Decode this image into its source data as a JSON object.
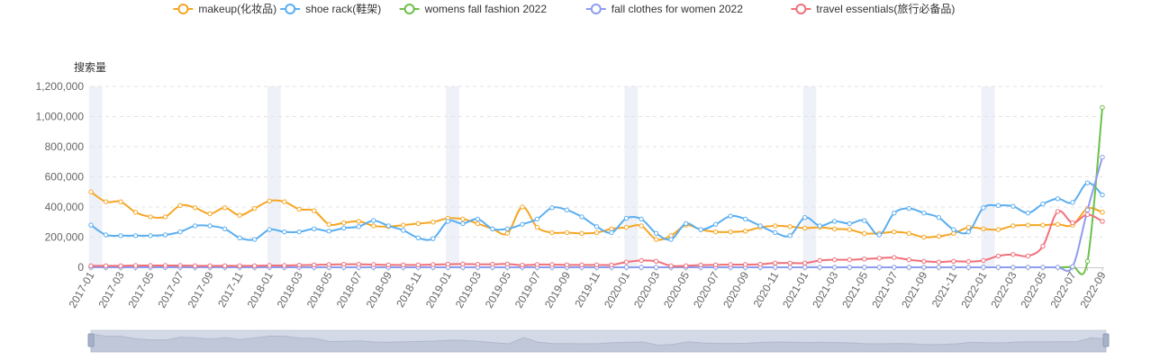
{
  "chart_data": {
    "type": "line",
    "ylabel": "搜索量",
    "ylim": [
      0,
      1200000
    ],
    "y_ticks": [
      "0",
      "200,000",
      "400,000",
      "600,000",
      "800,000",
      "1,000,000",
      "1,200,000"
    ],
    "legend_position": "top-center",
    "grid": true,
    "x_tick_labels": [
      "2017-01",
      "2017-03",
      "2017-05",
      "2017-07",
      "2017-09",
      "2017-11",
      "2018-01",
      "2018-03",
      "2018-05",
      "2018-07",
      "2018-09",
      "2018-11",
      "2019-01",
      "2019-03",
      "2019-05",
      "2019-07",
      "2019-09",
      "2019-11",
      "2020-01",
      "2020-03",
      "2020-05",
      "2020-07",
      "2020-09",
      "2020-11",
      "2021-01",
      "2021-03",
      "2021-05",
      "2021-07",
      "2021-09",
      "2021-11",
      "2022-01",
      "2022-03",
      "2022-05",
      "2022-07",
      "2022-09"
    ],
    "x": [
      "2017-01",
      "2017-02",
      "2017-03",
      "2017-04",
      "2017-05",
      "2017-06",
      "2017-07",
      "2017-08",
      "2017-09",
      "2017-10",
      "2017-11",
      "2017-12",
      "2018-01",
      "2018-02",
      "2018-03",
      "2018-04",
      "2018-05",
      "2018-06",
      "2018-07",
      "2018-08",
      "2018-09",
      "2018-10",
      "2018-11",
      "2018-12",
      "2019-01",
      "2019-02",
      "2019-03",
      "2019-04",
      "2019-05",
      "2019-06",
      "2019-07",
      "2019-08",
      "2019-09",
      "2019-10",
      "2019-11",
      "2019-12",
      "2020-01",
      "2020-02",
      "2020-03",
      "2020-04",
      "2020-05",
      "2020-06",
      "2020-07",
      "2020-08",
      "2020-09",
      "2020-10",
      "2020-11",
      "2020-12",
      "2021-01",
      "2021-02",
      "2021-03",
      "2021-04",
      "2021-05",
      "2021-06",
      "2021-07",
      "2021-08",
      "2021-09",
      "2021-10",
      "2021-11",
      "2021-12",
      "2022-01",
      "2022-02",
      "2022-03",
      "2022-04",
      "2022-05",
      "2022-06",
      "2022-07",
      "2022-08",
      "2022-09"
    ],
    "series": [
      {
        "name": "makeup(化妆品)",
        "color": "#f5a623",
        "values": [
          500000,
          435000,
          435000,
          365000,
          335000,
          335000,
          410000,
          395000,
          355000,
          395000,
          345000,
          390000,
          440000,
          435000,
          385000,
          375000,
          285000,
          295000,
          305000,
          275000,
          270000,
          280000,
          290000,
          300000,
          325000,
          320000,
          290000,
          255000,
          225000,
          400000,
          265000,
          230000,
          230000,
          225000,
          230000,
          255000,
          265000,
          275000,
          185000,
          210000,
          280000,
          250000,
          235000,
          235000,
          240000,
          265000,
          275000,
          270000,
          260000,
          265000,
          255000,
          250000,
          225000,
          225000,
          235000,
          225000,
          200000,
          205000,
          225000,
          265000,
          255000,
          250000,
          275000,
          280000,
          280000,
          285000,
          280000,
          390000,
          365000
        ]
      },
      {
        "name": "shoe rack(鞋架)",
        "color": "#5aaef0",
        "values": [
          280000,
          215000,
          210000,
          210000,
          210000,
          215000,
          235000,
          275000,
          275000,
          255000,
          195000,
          185000,
          250000,
          235000,
          235000,
          255000,
          240000,
          260000,
          270000,
          310000,
          275000,
          245000,
          195000,
          190000,
          305000,
          290000,
          320000,
          255000,
          255000,
          285000,
          320000,
          395000,
          380000,
          335000,
          270000,
          230000,
          325000,
          320000,
          225000,
          185000,
          290000,
          250000,
          285000,
          340000,
          320000,
          275000,
          230000,
          210000,
          330000,
          275000,
          305000,
          290000,
          310000,
          215000,
          360000,
          390000,
          360000,
          330000,
          250000,
          235000,
          395000,
          410000,
          405000,
          360000,
          420000,
          455000,
          430000,
          560000,
          480000
        ]
      },
      {
        "name": "womens fall fashion 2022",
        "color": "#6cc04a",
        "values": [
          0,
          0,
          0,
          0,
          0,
          0,
          0,
          0,
          0,
          0,
          0,
          0,
          0,
          0,
          0,
          0,
          0,
          0,
          0,
          0,
          0,
          0,
          0,
          0,
          0,
          0,
          0,
          0,
          0,
          0,
          0,
          0,
          0,
          0,
          0,
          0,
          0,
          0,
          0,
          0,
          0,
          0,
          0,
          0,
          0,
          0,
          0,
          0,
          0,
          0,
          0,
          0,
          0,
          0,
          0,
          0,
          0,
          0,
          0,
          0,
          0,
          0,
          0,
          0,
          0,
          0,
          5000,
          40000,
          1060000
        ]
      },
      {
        "name": "fall clothes for women 2022",
        "color": "#8e9cf0",
        "values": [
          0,
          0,
          0,
          0,
          0,
          0,
          0,
          0,
          0,
          0,
          0,
          0,
          0,
          0,
          0,
          0,
          0,
          0,
          0,
          0,
          0,
          0,
          0,
          0,
          0,
          0,
          0,
          0,
          0,
          0,
          0,
          0,
          0,
          0,
          0,
          0,
          0,
          0,
          0,
          0,
          0,
          0,
          0,
          0,
          0,
          0,
          0,
          0,
          0,
          0,
          0,
          0,
          0,
          0,
          0,
          0,
          0,
          0,
          0,
          0,
          0,
          0,
          0,
          0,
          0,
          0,
          5000,
          380000,
          730000
        ]
      },
      {
        "name": "travel essentials(旅行必备品)",
        "color": "#f0707a",
        "values": [
          10000,
          10000,
          10000,
          12000,
          12000,
          12000,
          12000,
          10000,
          10000,
          10000,
          10000,
          10000,
          12000,
          12000,
          14000,
          16000,
          18000,
          20000,
          20000,
          18000,
          16000,
          16000,
          16000,
          18000,
          20000,
          22000,
          20000,
          20000,
          22000,
          14000,
          18000,
          18000,
          16000,
          16000,
          16000,
          16000,
          35000,
          45000,
          40000,
          10000,
          10000,
          15000,
          16000,
          18000,
          18000,
          20000,
          28000,
          28000,
          28000,
          45000,
          50000,
          50000,
          55000,
          60000,
          65000,
          50000,
          40000,
          35000,
          40000,
          38000,
          45000,
          75000,
          85000,
          75000,
          140000,
          370000,
          295000,
          350000,
          305000
        ]
      }
    ]
  }
}
